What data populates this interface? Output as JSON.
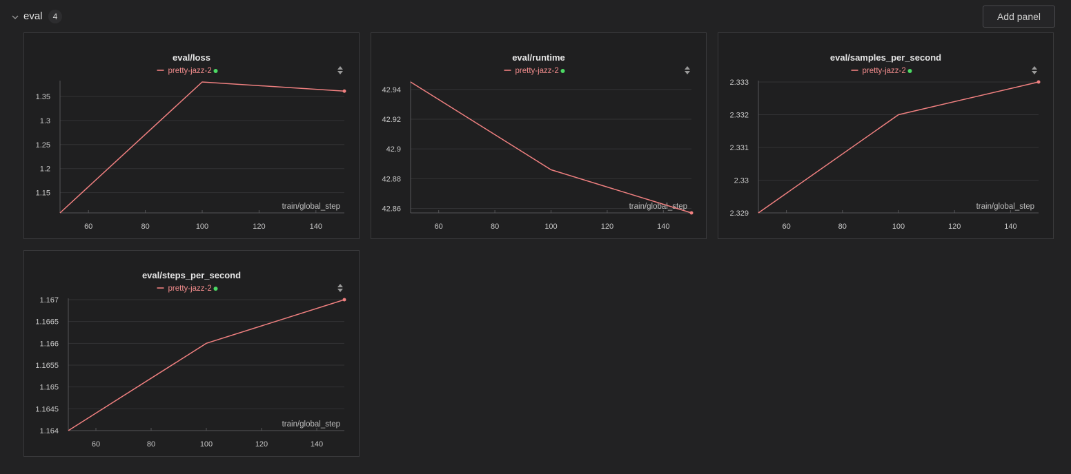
{
  "section": {
    "title": "eval",
    "count": "4",
    "add_panel_label": "Add panel"
  },
  "colors": {
    "series": "#f08080",
    "run_status": "#4cd964",
    "grid": "#333335",
    "axis": "#555558"
  },
  "icons": {
    "collapse": "chevron-down-icon",
    "sort": "sort-arrows-icon",
    "status": "status-dot-icon"
  },
  "chart_data": [
    {
      "type": "line",
      "title": "eval/loss",
      "xlabel": "train/global_step",
      "x": [
        50,
        100,
        150
      ],
      "series": [
        {
          "name": "pretty-jazz-2",
          "values": [
            1.108,
            1.38,
            1.361
          ]
        }
      ],
      "xlim": [
        50,
        150
      ],
      "ylim": [
        1.108,
        1.38
      ],
      "xticks": [
        60,
        80,
        100,
        120,
        140
      ],
      "yticks": [
        1.15,
        1.2,
        1.25,
        1.3,
        1.35
      ],
      "yticklabels": [
        "1.15",
        "1.2",
        "1.25",
        "1.3",
        "1.35"
      ],
      "grid": true,
      "legend": "top-center"
    },
    {
      "type": "line",
      "title": "eval/runtime",
      "xlabel": "train/global_step",
      "x": [
        50,
        100,
        150
      ],
      "series": [
        {
          "name": "pretty-jazz-2",
          "values": [
            42.945,
            42.886,
            42.857
          ]
        }
      ],
      "xlim": [
        50,
        150
      ],
      "ylim": [
        42.857,
        42.945
      ],
      "xticks": [
        60,
        80,
        100,
        120,
        140
      ],
      "yticks": [
        42.86,
        42.88,
        42.9,
        42.92,
        42.94
      ],
      "yticklabels": [
        "42.86",
        "42.88",
        "42.9",
        "42.92",
        "42.94"
      ],
      "grid": true,
      "legend": "top-center"
    },
    {
      "type": "line",
      "title": "eval/samples_per_second",
      "xlabel": "train/global_step",
      "x": [
        50,
        100,
        150
      ],
      "series": [
        {
          "name": "pretty-jazz-2",
          "values": [
            2.329,
            2.332,
            2.333
          ]
        }
      ],
      "xlim": [
        50,
        150
      ],
      "ylim": [
        2.329,
        2.333
      ],
      "xticks": [
        60,
        80,
        100,
        120,
        140
      ],
      "yticks": [
        2.329,
        2.33,
        2.331,
        2.332,
        2.333
      ],
      "yticklabels": [
        "2.329",
        "2.33",
        "2.331",
        "2.332",
        "2.333"
      ],
      "grid": true,
      "legend": "top-center"
    },
    {
      "type": "line",
      "title": "eval/steps_per_second",
      "xlabel": "train/global_step",
      "x": [
        50,
        100,
        150
      ],
      "series": [
        {
          "name": "pretty-jazz-2",
          "values": [
            1.164,
            1.166,
            1.167
          ]
        }
      ],
      "xlim": [
        50,
        150
      ],
      "ylim": [
        1.164,
        1.167
      ],
      "xticks": [
        60,
        80,
        100,
        120,
        140
      ],
      "yticks": [
        1.164,
        1.1645,
        1.165,
        1.1655,
        1.166,
        1.1665,
        1.167
      ],
      "yticklabels": [
        "1.164",
        "1.1645",
        "1.165",
        "1.1655",
        "1.166",
        "1.1665",
        "1.167"
      ],
      "grid": true,
      "legend": "top-center"
    }
  ]
}
